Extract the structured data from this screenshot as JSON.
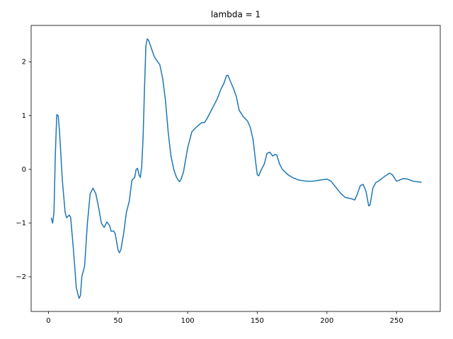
{
  "chart_data": {
    "type": "line",
    "title": "lambda = 1",
    "x": [
      2,
      3,
      4,
      5,
      6,
      7,
      8,
      10,
      12,
      13,
      15,
      16,
      18,
      20,
      22,
      23,
      24,
      26,
      28,
      30,
      32,
      34,
      36,
      38,
      40,
      42,
      44,
      45,
      47,
      48,
      50,
      51,
      52,
      54,
      56,
      58,
      60,
      62,
      63,
      64,
      65,
      66,
      67,
      68,
      69,
      70,
      71,
      72,
      74,
      76,
      78,
      80,
      82,
      84,
      86,
      88,
      90,
      92,
      94,
      95,
      97,
      100,
      103,
      106,
      110,
      112,
      114,
      118,
      121,
      124,
      126,
      128,
      129,
      131,
      133,
      135,
      137,
      140,
      143,
      145,
      147,
      149,
      150,
      151,
      153,
      155,
      157,
      159,
      161,
      163,
      164,
      166,
      168,
      172,
      176,
      180,
      185,
      190,
      195,
      200,
      203,
      206,
      210,
      213,
      218,
      220,
      222,
      224,
      226,
      228,
      230,
      231,
      233,
      235,
      238,
      242,
      245,
      247,
      250,
      252,
      255,
      258,
      262,
      265,
      268
    ],
    "series": [
      {
        "color": "#1f77b4",
        "values": [
          -0.9,
          -1.0,
          -0.8,
          0.3,
          1.02,
          1.0,
          0.7,
          -0.2,
          -0.8,
          -0.9,
          -0.85,
          -0.9,
          -1.5,
          -2.2,
          -2.4,
          -2.35,
          -2.0,
          -1.8,
          -1.0,
          -0.45,
          -0.35,
          -0.45,
          -0.7,
          -1.0,
          -1.08,
          -0.98,
          -1.05,
          -1.15,
          -1.15,
          -1.2,
          -1.5,
          -1.55,
          -1.5,
          -1.2,
          -0.8,
          -0.6,
          -0.2,
          -0.15,
          0.0,
          0.02,
          -0.1,
          -0.15,
          0.05,
          0.6,
          1.5,
          2.3,
          2.43,
          2.4,
          2.25,
          2.1,
          2.02,
          1.95,
          1.7,
          1.3,
          0.7,
          0.25,
          0.0,
          -0.15,
          -0.23,
          -0.2,
          -0.05,
          0.4,
          0.7,
          0.78,
          0.87,
          0.87,
          0.95,
          1.15,
          1.3,
          1.5,
          1.6,
          1.75,
          1.75,
          1.62,
          1.5,
          1.35,
          1.1,
          0.98,
          0.9,
          0.78,
          0.55,
          0.1,
          -0.1,
          -0.12,
          0.0,
          0.1,
          0.3,
          0.32,
          0.25,
          0.28,
          0.27,
          0.1,
          0.0,
          -0.1,
          -0.16,
          -0.2,
          -0.22,
          -0.22,
          -0.2,
          -0.18,
          -0.22,
          -0.32,
          -0.45,
          -0.52,
          -0.55,
          -0.57,
          -0.45,
          -0.3,
          -0.28,
          -0.4,
          -0.68,
          -0.66,
          -0.35,
          -0.25,
          -0.2,
          -0.12,
          -0.07,
          -0.1,
          -0.22,
          -0.2,
          -0.17,
          -0.18,
          -0.22,
          -0.23,
          -0.24
        ]
      }
    ],
    "xlim": [
      -12.4,
      281.4
    ],
    "xticks": [
      0,
      50,
      100,
      150,
      200,
      250
    ],
    "ylim": [
      -2.645,
      2.68
    ],
    "yticks": [
      {
        "value": -2,
        "label": "−2"
      },
      {
        "value": -1,
        "label": "−1"
      },
      0,
      1,
      2
    ]
  }
}
